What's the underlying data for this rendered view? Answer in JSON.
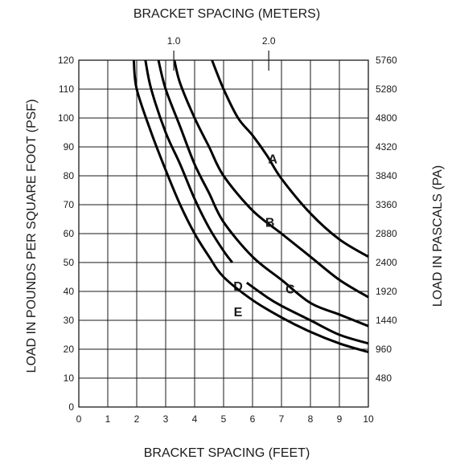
{
  "chart_data": {
    "type": "line",
    "x_axis": {
      "label": "BRACKET SPACING (FEET)",
      "range": [
        0,
        10
      ],
      "ticks": [
        "0",
        "1",
        "2",
        "3",
        "4",
        "5",
        "6",
        "7",
        "8",
        "9",
        "10"
      ]
    },
    "y_axis": {
      "label": "LOAD IN POUNDS PER SQUARE FOOT (PSF)",
      "range": [
        0,
        120
      ],
      "ticks": [
        "0",
        "10",
        "20",
        "30",
        "40",
        "50",
        "60",
        "70",
        "80",
        "90",
        "100",
        "110",
        "120"
      ]
    },
    "secondary_x_axis": {
      "label": "BRACKET SPACING (METERS)",
      "ticks": [
        {
          "label": "1.0",
          "value_ft": 3.28
        },
        {
          "label": "2.0",
          "value_ft": 6.56
        }
      ]
    },
    "secondary_y_axis": {
      "label": "LOAD IN PASCALS (PA)",
      "ticks": [
        {
          "label": "480",
          "value_psf": 10
        },
        {
          "label": "960",
          "value_psf": 20
        },
        {
          "label": "1440",
          "value_psf": 30
        },
        {
          "label": "1920",
          "value_psf": 40
        },
        {
          "label": "2400",
          "value_psf": 50
        },
        {
          "label": "2880",
          "value_psf": 60
        },
        {
          "label": "3360",
          "value_psf": 70
        },
        {
          "label": "3840",
          "value_psf": 80
        },
        {
          "label": "4320",
          "value_psf": 90
        },
        {
          "label": "4800",
          "value_psf": 100
        },
        {
          "label": "5280",
          "value_psf": 110
        },
        {
          "label": "5760",
          "value_psf": 120
        }
      ]
    },
    "grid": true,
    "series": [
      {
        "name": "A",
        "label_at": [
          6.7,
          86
        ],
        "points": [
          [
            4.6,
            120
          ],
          [
            5.0,
            110
          ],
          [
            5.5,
            100
          ],
          [
            6.0,
            94
          ],
          [
            6.5,
            87
          ],
          [
            7,
            79
          ],
          [
            8,
            67
          ],
          [
            9,
            58
          ],
          [
            10,
            52
          ]
        ]
      },
      {
        "name": "B",
        "label_at": [
          6.6,
          64
        ],
        "points": [
          [
            3.3,
            120
          ],
          [
            3.5,
            112
          ],
          [
            4,
            100
          ],
          [
            4.5,
            90
          ],
          [
            5,
            80
          ],
          [
            6,
            68
          ],
          [
            7,
            60
          ],
          [
            8,
            52
          ],
          [
            9,
            44
          ],
          [
            10,
            38
          ]
        ]
      },
      {
        "name": "C",
        "label_at": [
          7.3,
          41
        ],
        "points": [
          [
            2.75,
            120
          ],
          [
            3,
            110
          ],
          [
            3.5,
            97
          ],
          [
            4,
            84
          ],
          [
            4.5,
            74
          ],
          [
            5,
            64
          ],
          [
            6,
            52
          ],
          [
            7,
            44
          ],
          [
            8,
            36
          ],
          [
            9,
            32
          ],
          [
            10,
            28
          ]
        ]
      },
      {
        "name": "D",
        "label_at": [
          5.5,
          42
        ],
        "points": [
          [
            2.3,
            120
          ],
          [
            2.5,
            110
          ],
          [
            3,
            95
          ],
          [
            3.5,
            84
          ],
          [
            4,
            72
          ],
          [
            4.5,
            62
          ],
          [
            5,
            54
          ],
          [
            5.3,
            50
          ]
        ]
      },
      {
        "name": "D",
        "label_at": null,
        "points": [
          [
            5.8,
            43
          ],
          [
            6.5,
            38
          ],
          [
            7,
            35
          ],
          [
            8,
            30
          ],
          [
            9,
            25
          ],
          [
            10,
            22
          ]
        ]
      },
      {
        "name": "E",
        "label_at": [
          5.5,
          33
        ],
        "points": [
          [
            1.9,
            120
          ],
          [
            2,
            110
          ],
          [
            2.5,
            95
          ],
          [
            3,
            82
          ],
          [
            3.5,
            70
          ],
          [
            4,
            60
          ],
          [
            4.5,
            52
          ],
          [
            5,
            45
          ],
          [
            6,
            37
          ],
          [
            7,
            31
          ],
          [
            8,
            26
          ],
          [
            9,
            22
          ],
          [
            10,
            19
          ]
        ]
      }
    ]
  }
}
